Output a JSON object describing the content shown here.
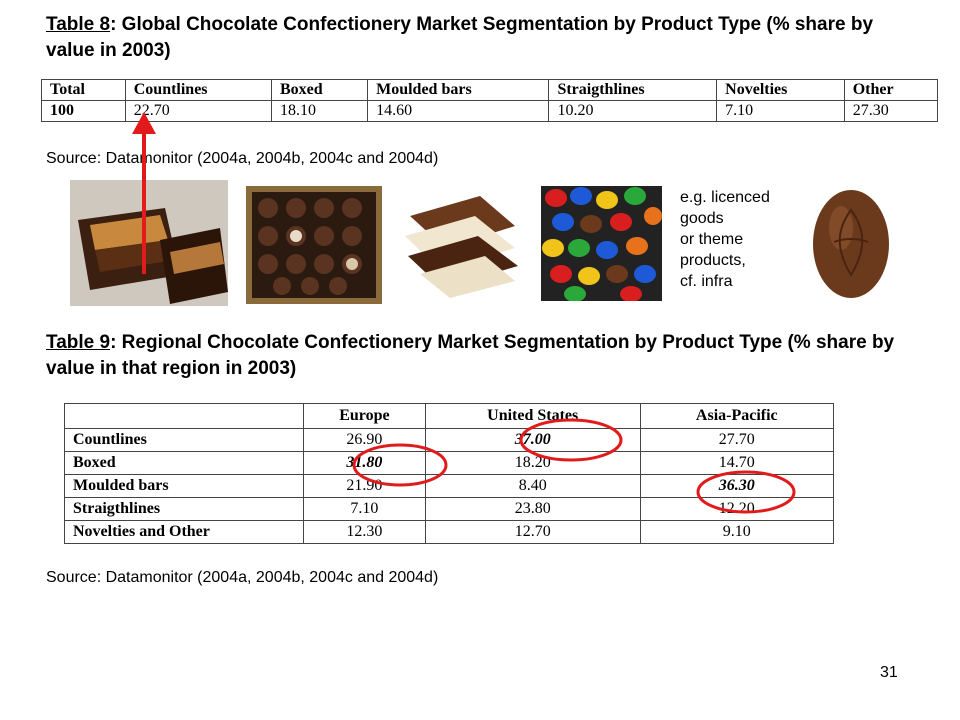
{
  "table8": {
    "label": "Table 8",
    "title_rest": ": Global Chocolate Confectionery Market Segmentation by Product Type (% share by value in 2003)",
    "headers": [
      "Total",
      "Countlines",
      "Boxed",
      "Moulded bars",
      "Straigthlines",
      "Novelties",
      "Other"
    ],
    "values": [
      "100",
      "22.70",
      "18.10",
      "14.60",
      "10.20",
      "7.10",
      "27.30"
    ],
    "source": "Source: Datamonitor (2004a, 2004b, 2004c and 2004d)"
  },
  "note": {
    "lines": [
      "e.g. licenced",
      "goods",
      "or theme",
      "products,",
      "cf. infra"
    ]
  },
  "table9": {
    "label": "Table 9",
    "title_rest": ": Regional Chocolate Confectionery Market Segmentation by Product Type (% share by value in that region in 2003)",
    "columns": [
      "",
      "Europe",
      "United States",
      "Asia-Pacific"
    ],
    "rows": [
      {
        "label": "Countlines",
        "values": [
          "26.90",
          "37.00",
          "27.70"
        ]
      },
      {
        "label": "Boxed",
        "values": [
          "31.80",
          "18.20",
          "14.70"
        ]
      },
      {
        "label": "Moulded bars",
        "values": [
          "21.90",
          "8.40",
          "36.30"
        ]
      },
      {
        "label": "Straigthlines",
        "values": [
          "7.10",
          "23.80",
          "12.20"
        ]
      },
      {
        "label": "Novelties and Other",
        "values": [
          "12.30",
          "12.70",
          "9.10"
        ]
      }
    ],
    "source": "Source: Datamonitor (2004a, 2004b, 2004c and 2004d)"
  },
  "page_number": "31",
  "highlight_color": "#e11b1b"
}
